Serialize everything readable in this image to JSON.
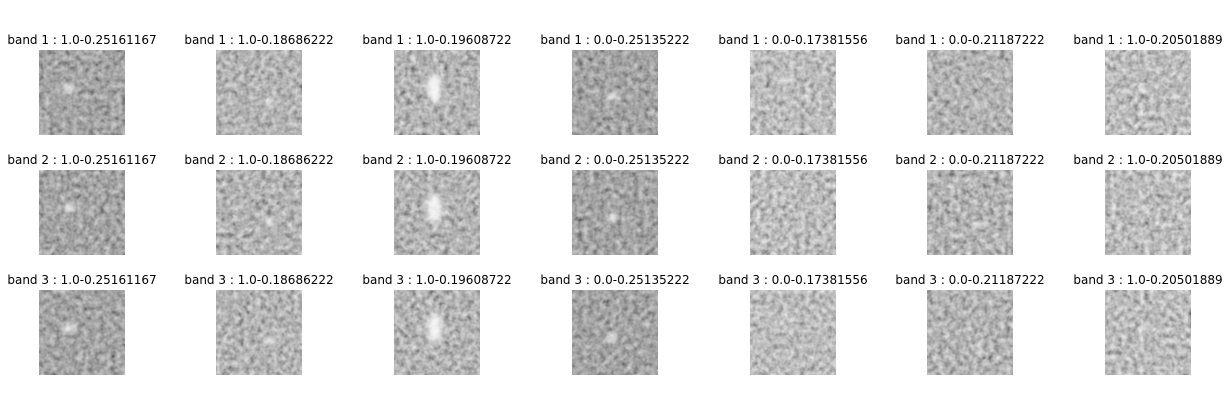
{
  "rows": [
    [
      "band 1 : 1.0-0.25161167",
      "band 1 : 1.0-0.18686222",
      "band 1 : 1.0-0.19608722",
      "band 1 : 0.0-0.25135222",
      "band 1 : 0.0-0.17381556",
      "band 1 : 0.0-0.21187222",
      "band 1 : 1.0-0.20501889"
    ],
    [
      "band 2 : 1.0-0.25161167",
      "band 2 : 1.0-0.18686222",
      "band 2 : 1.0-0.19608722",
      "band 2 : 0.0-0.25135222",
      "band 2 : 0.0-0.17381556",
      "band 2 : 0.0-0.21187222",
      "band 2 : 1.0-0.20501889"
    ],
    [
      "band 3 : 1.0-0.25161167",
      "band 3 : 1.0-0.18686222",
      "band 3 : 1.0-0.19608722",
      "band 3 : 0.0-0.25135222",
      "band 3 : 0.0-0.17381556",
      "band 3 : 0.0-0.21187222",
      "band 3 : 1.0-0.20501889"
    ]
  ]
}
